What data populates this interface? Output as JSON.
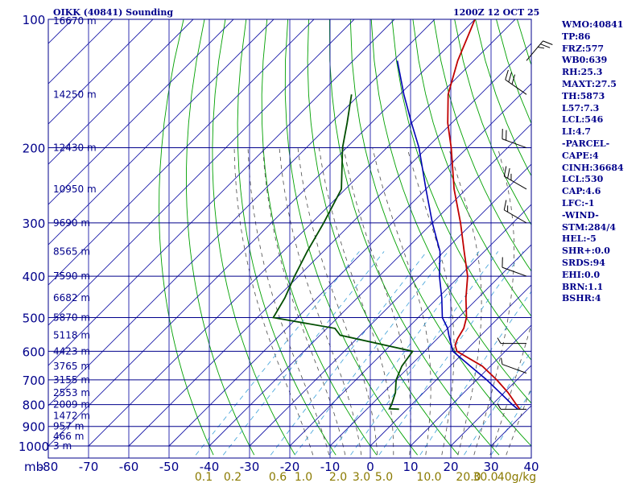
{
  "header": {
    "title": "OIKK (40841) Sounding",
    "time": "1200Z 12 OCT 25"
  },
  "stats": [
    "WMO:40841",
    "TP:86",
    "FRZ:577",
    "WB0:639",
    "RH:25.3",
    "MAXT:27.5",
    "TH:5873",
    "L57:7.3",
    "LCL:546",
    "LI:4.7",
    "-PARCEL-",
    "CAPE:4",
    "CINH:36684",
    "LCL:530",
    "CAP:4.6",
    "LFC:-1",
    "-WIND-",
    "STM:284/4",
    "HEL:-5",
    "SHR+:0.0",
    "SRDS:94",
    "EHI:0.0",
    "BRN:1.1",
    "BSHR:4"
  ],
  "colors": {
    "frame": "#00008b",
    "isotherm": "#1a1aa8",
    "dry_adiabat": "#00a000",
    "moist_adiabat": "#4a4a4a",
    "mixing_ratio": "#3a9fd8",
    "temperature": "#c00000",
    "dewpoint": "#004d00",
    "parcel": "#0000b4",
    "mixing_label": "#8a7a00",
    "wind": "#000000"
  },
  "chart_data": {
    "type": "line",
    "chart_kind": "skew-t log-p sounding",
    "x_label": "mb",
    "xlim": [
      -80,
      40
    ],
    "ylim": [
      1000,
      100
    ],
    "y_scale": "log",
    "isotherm_ticks": [
      -80,
      -70,
      -60,
      -50,
      -40,
      -30,
      -20,
      -10,
      0,
      10,
      20,
      30,
      40
    ],
    "isotherm_tick_labels": [
      "-80",
      "-70",
      "-60",
      "-50",
      "-40",
      "-30",
      "-20",
      "-10",
      "0",
      "10",
      "20",
      "30",
      "40"
    ],
    "pressure_ticks": [
      100,
      200,
      300,
      400,
      500,
      600,
      700,
      800,
      900,
      1000
    ],
    "pressure_tick_labels": [
      "100",
      "200",
      "300",
      "400",
      "500",
      "600",
      "700",
      "800",
      "900",
      "1000"
    ],
    "height_labels": [
      {
        "pressure": 100,
        "label": "16670 m"
      },
      {
        "pressure": 150,
        "label": "14250 m"
      },
      {
        "pressure": 200,
        "label": "12430 m"
      },
      {
        "pressure": 250,
        "label": "10950 m"
      },
      {
        "pressure": 300,
        "label": "9690 m"
      },
      {
        "pressure": 350,
        "label": "8565 m"
      },
      {
        "pressure": 400,
        "label": "7590 m"
      },
      {
        "pressure": 450,
        "label": "6682 m"
      },
      {
        "pressure": 500,
        "label": "5870 m"
      },
      {
        "pressure": 550,
        "label": "5118 m"
      },
      {
        "pressure": 600,
        "label": "4423 m"
      },
      {
        "pressure": 650,
        "label": "3765 m"
      },
      {
        "pressure": 700,
        "label": "3155 m"
      },
      {
        "pressure": 750,
        "label": "2553 m"
      },
      {
        "pressure": 800,
        "label": "2009 m"
      },
      {
        "pressure": 850,
        "label": "1472 m"
      },
      {
        "pressure": 900,
        "label": "957 m"
      },
      {
        "pressure": 950,
        "label": "466 m"
      },
      {
        "pressure": 1000,
        "label": "3 m"
      }
    ],
    "mixing_ratio_values": [
      0.1,
      0.2,
      0.6,
      1.0,
      2.0,
      3.0,
      5.0,
      10.0,
      20.0,
      30.0
    ],
    "mixing_ratio_labels": [
      "0.1",
      "0.2",
      "0.6",
      "1.0",
      "2.0",
      "3.0",
      "5.0",
      "10.0",
      "20.0",
      "30.0"
    ],
    "mixing_ratio_unit": "40g/kg",
    "series": [
      {
        "name": "temperature",
        "pressure": [
          820,
          800,
          750,
          700,
          650,
          600,
          580,
          560,
          530,
          500,
          450,
          400,
          350,
          300,
          250,
          200,
          175,
          150,
          125,
          100
        ],
        "temp": [
          28,
          26,
          21,
          15,
          8,
          -2,
          -4,
          -5,
          -6,
          -8,
          -13,
          -18,
          -25,
          -33,
          -43,
          -54,
          -61,
          -68,
          -74,
          -80
        ]
      },
      {
        "name": "dewpoint",
        "pressure": [
          820,
          818,
          800,
          750,
          700,
          650,
          600,
          550,
          530,
          500,
          450,
          400,
          350,
          300,
          250,
          200,
          175,
          150
        ],
        "temp": [
          -2,
          -4.5,
          -5,
          -7,
          -10,
          -12,
          -13,
          -35,
          -38,
          -56,
          -58,
          -61,
          -64,
          -67,
          -71,
          -81,
          -86,
          -92
        ]
      },
      {
        "name": "parcel",
        "pressure": [
          820,
          800,
          750,
          700,
          650,
          600,
          550,
          530,
          500,
          450,
          400,
          350,
          300,
          250,
          200,
          175,
          150,
          125
        ],
        "temp": [
          27.5,
          25,
          19,
          12.5,
          5,
          -3,
          -8,
          -10,
          -14,
          -19,
          -25,
          -31,
          -40,
          -50,
          -62,
          -70,
          -79,
          -89
        ]
      }
    ],
    "wind_barbs": [
      {
        "pressure": 125,
        "direction": 40,
        "speed": 25
      },
      {
        "pressure": 150,
        "direction": 305,
        "speed": 30
      },
      {
        "pressure": 200,
        "direction": 290,
        "speed": 20
      },
      {
        "pressure": 250,
        "direction": 300,
        "speed": 25
      },
      {
        "pressure": 300,
        "direction": 300,
        "speed": 15
      },
      {
        "pressure": 400,
        "direction": 290,
        "speed": 10
      },
      {
        "pressure": 575,
        "direction": 270,
        "speed": 5
      },
      {
        "pressure": 675,
        "direction": 290,
        "speed": 5
      },
      {
        "pressure": 820,
        "direction": 270,
        "speed": 5
      }
    ]
  }
}
